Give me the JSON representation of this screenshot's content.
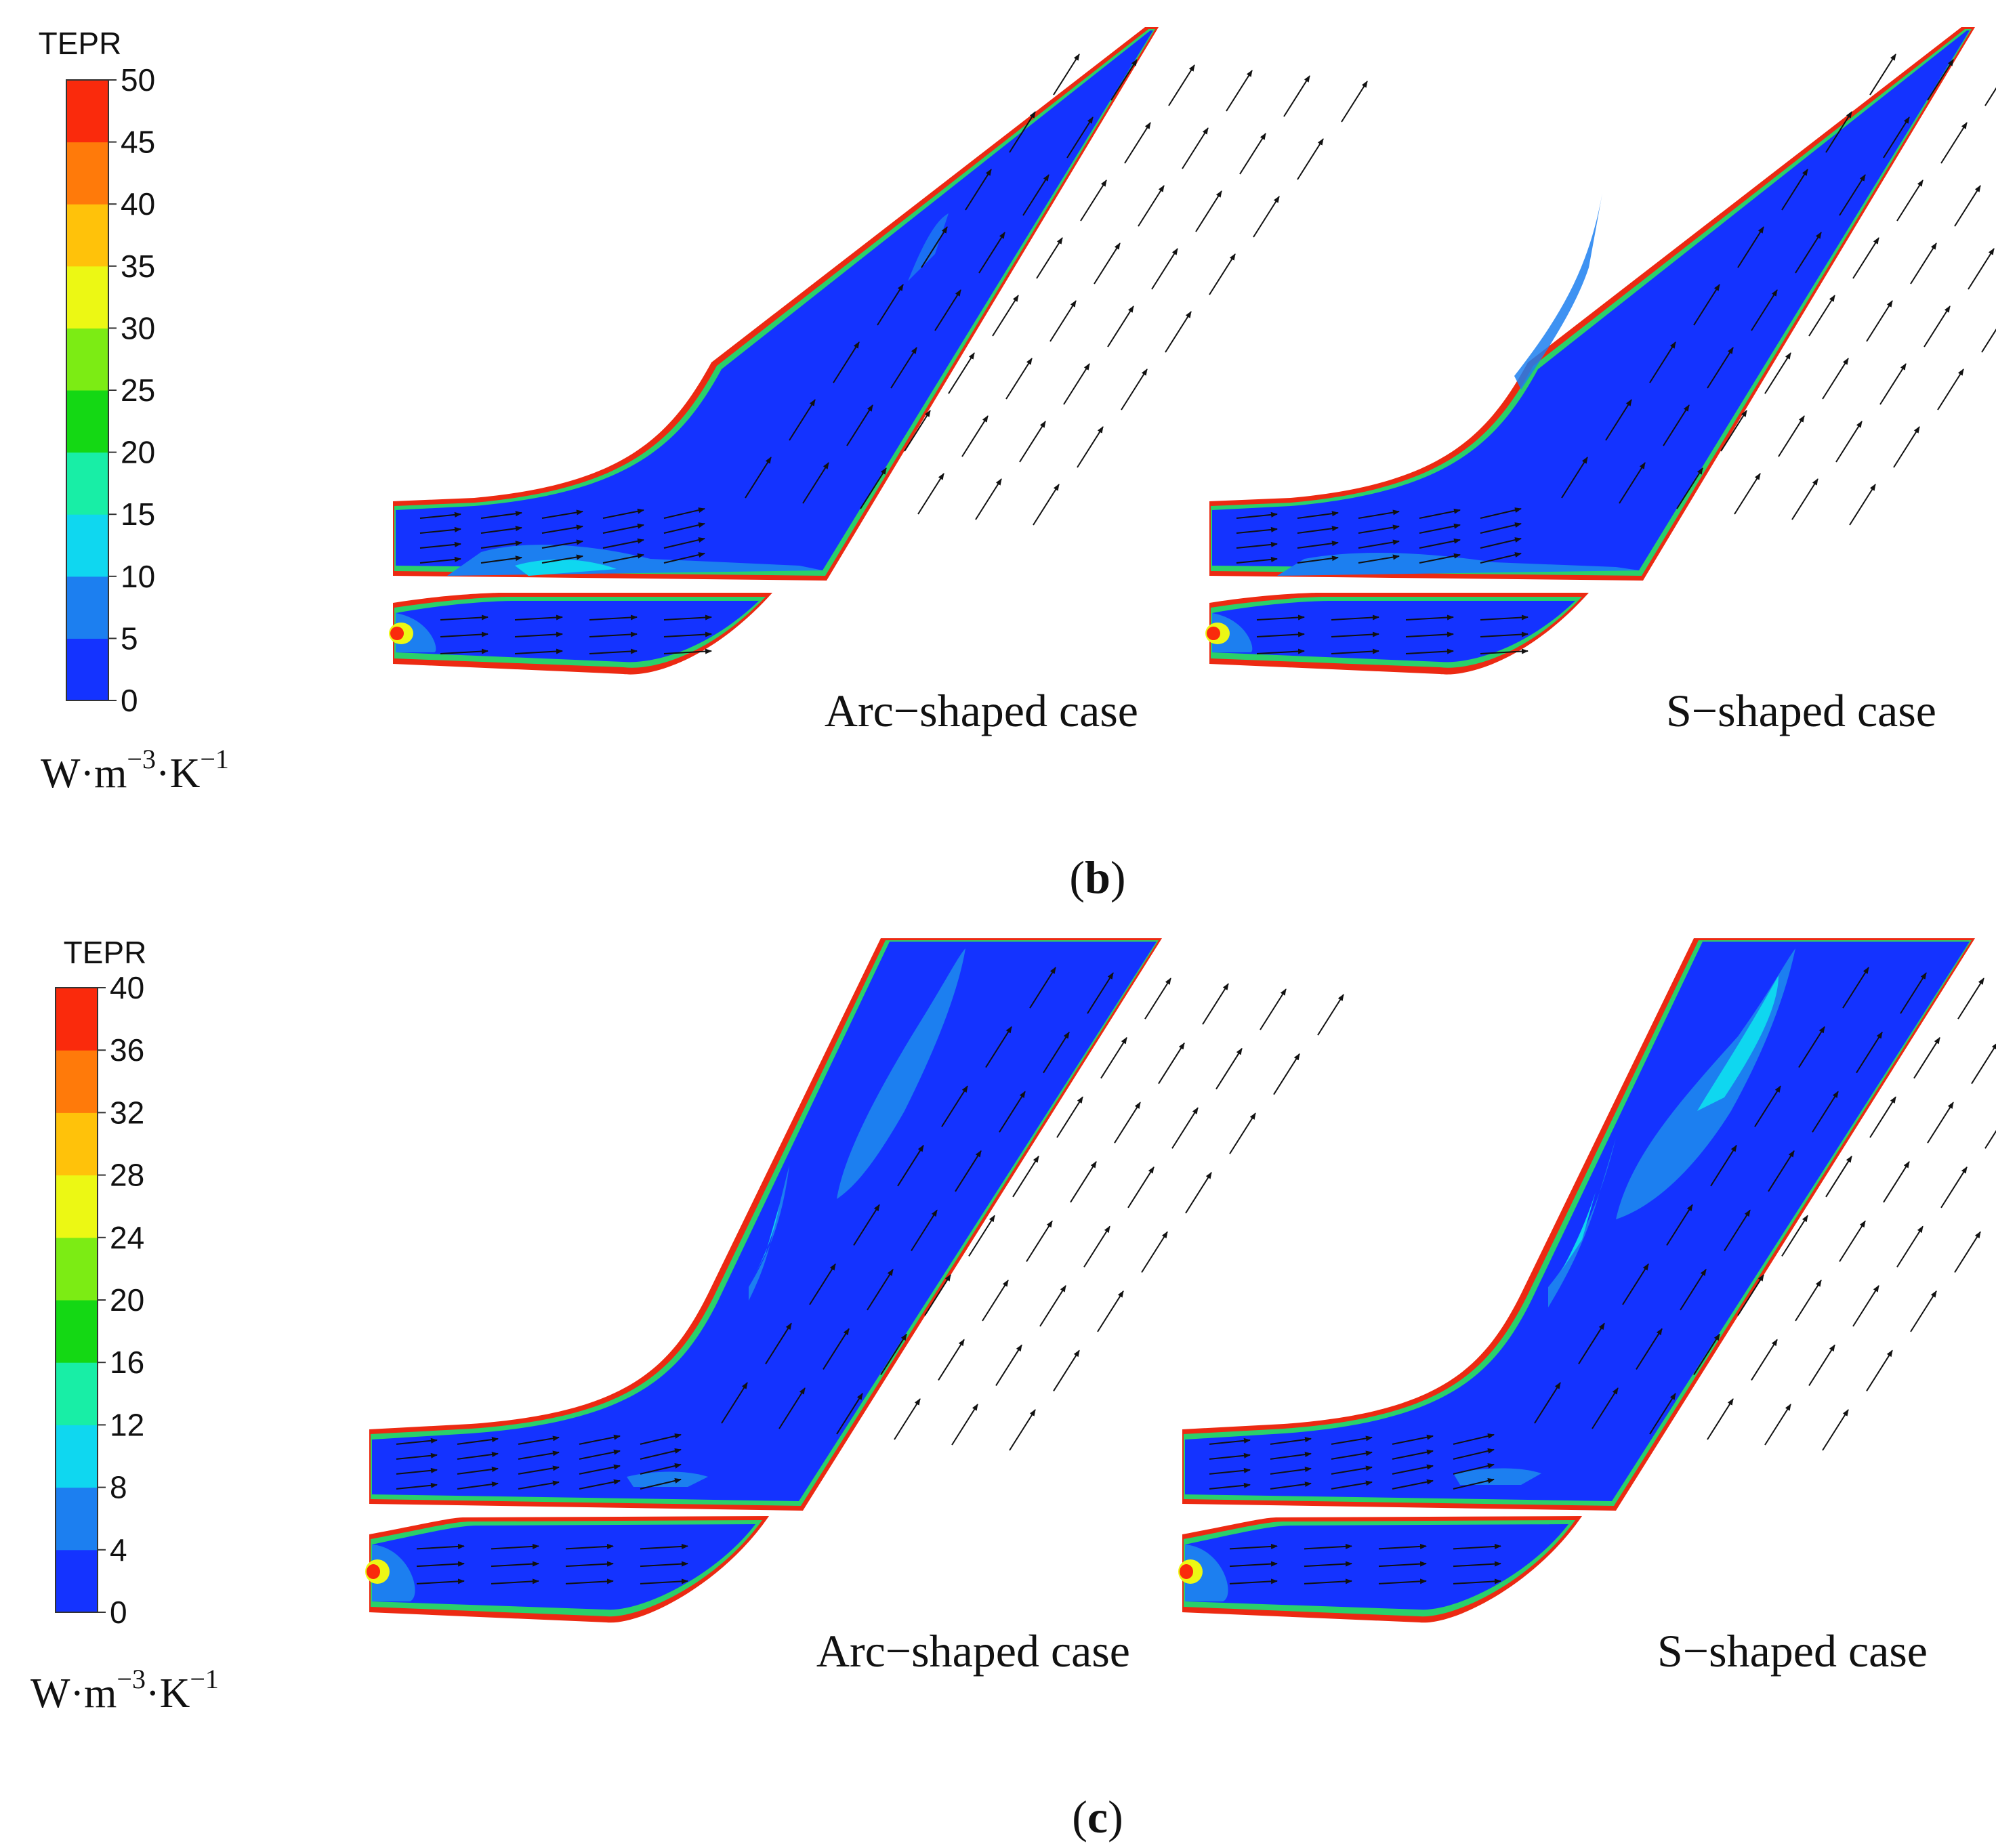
{
  "figure": {
    "panel_b": {
      "label_open": "(",
      "label_letter": "b",
      "label_close": ")",
      "legend": {
        "title": "TEPR",
        "unit_text": "W·m",
        "unit_exp1": "−3",
        "unit_mid": "·K",
        "unit_exp2": "−1",
        "ticks": [
          "50",
          "45",
          "40",
          "35",
          "30",
          "25",
          "20",
          "15",
          "10",
          "5",
          "0"
        ],
        "min": 0,
        "max": 50
      },
      "case_left": "Arc−shaped case",
      "case_right": "S−shaped case"
    },
    "panel_c": {
      "label_open": "(",
      "label_letter": "c",
      "label_close": ")",
      "legend": {
        "title": "TEPR",
        "unit_text": "W·m",
        "unit_exp1": "−3",
        "unit_mid": "·K",
        "unit_exp2": "−1",
        "ticks": [
          "40",
          "36",
          "32",
          "28",
          "24",
          "20",
          "16",
          "12",
          "8",
          "4",
          "0"
        ],
        "min": 0,
        "max": 40
      },
      "case_left": "Arc−shaped case",
      "case_right": "S−shaped case"
    },
    "colormap": [
      "#1433ff",
      "#1c7ff0",
      "#0fd7f0",
      "#18eea6",
      "#14d814",
      "#7cec14",
      "#ecf814",
      "#ffc20a",
      "#ff7a0a",
      "#fa2a0c"
    ]
  }
}
